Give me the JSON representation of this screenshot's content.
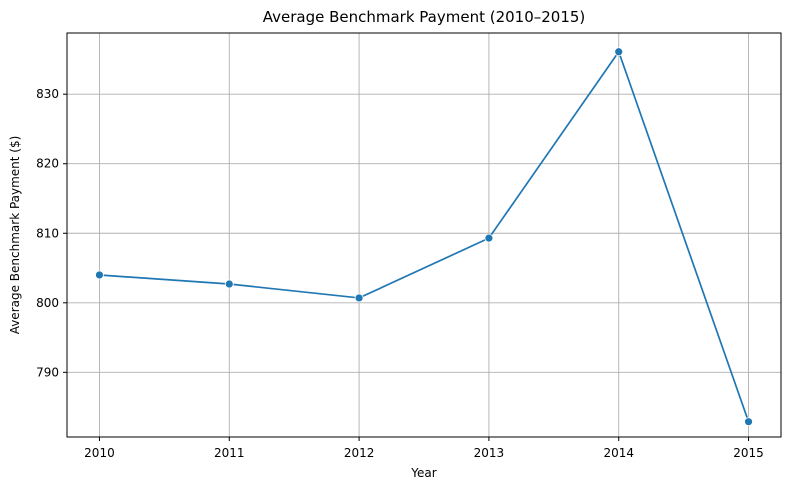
{
  "chart_data": {
    "type": "line",
    "title": "Average Benchmark Payment (2010–2015)",
    "xlabel": "Year",
    "ylabel": "Average Benchmark Payment ($)",
    "x": [
      2010,
      2011,
      2012,
      2013,
      2014,
      2015
    ],
    "x_tick_labels": [
      "2010",
      "2011",
      "2012",
      "2013",
      "2014",
      "2015"
    ],
    "y_ticks": [
      790,
      800,
      810,
      820,
      830
    ],
    "y_tick_labels": [
      "790",
      "800",
      "810",
      "820",
      "830"
    ],
    "ylim": [
      780.7,
      838.8
    ],
    "xlim": [
      2009.75,
      2015.25
    ],
    "grid": true,
    "series": [
      {
        "values": [
          804.0,
          802.7,
          800.7,
          809.3,
          836.1,
          782.9
        ],
        "color": "#1f77b4",
        "marker": "circle"
      }
    ]
  }
}
